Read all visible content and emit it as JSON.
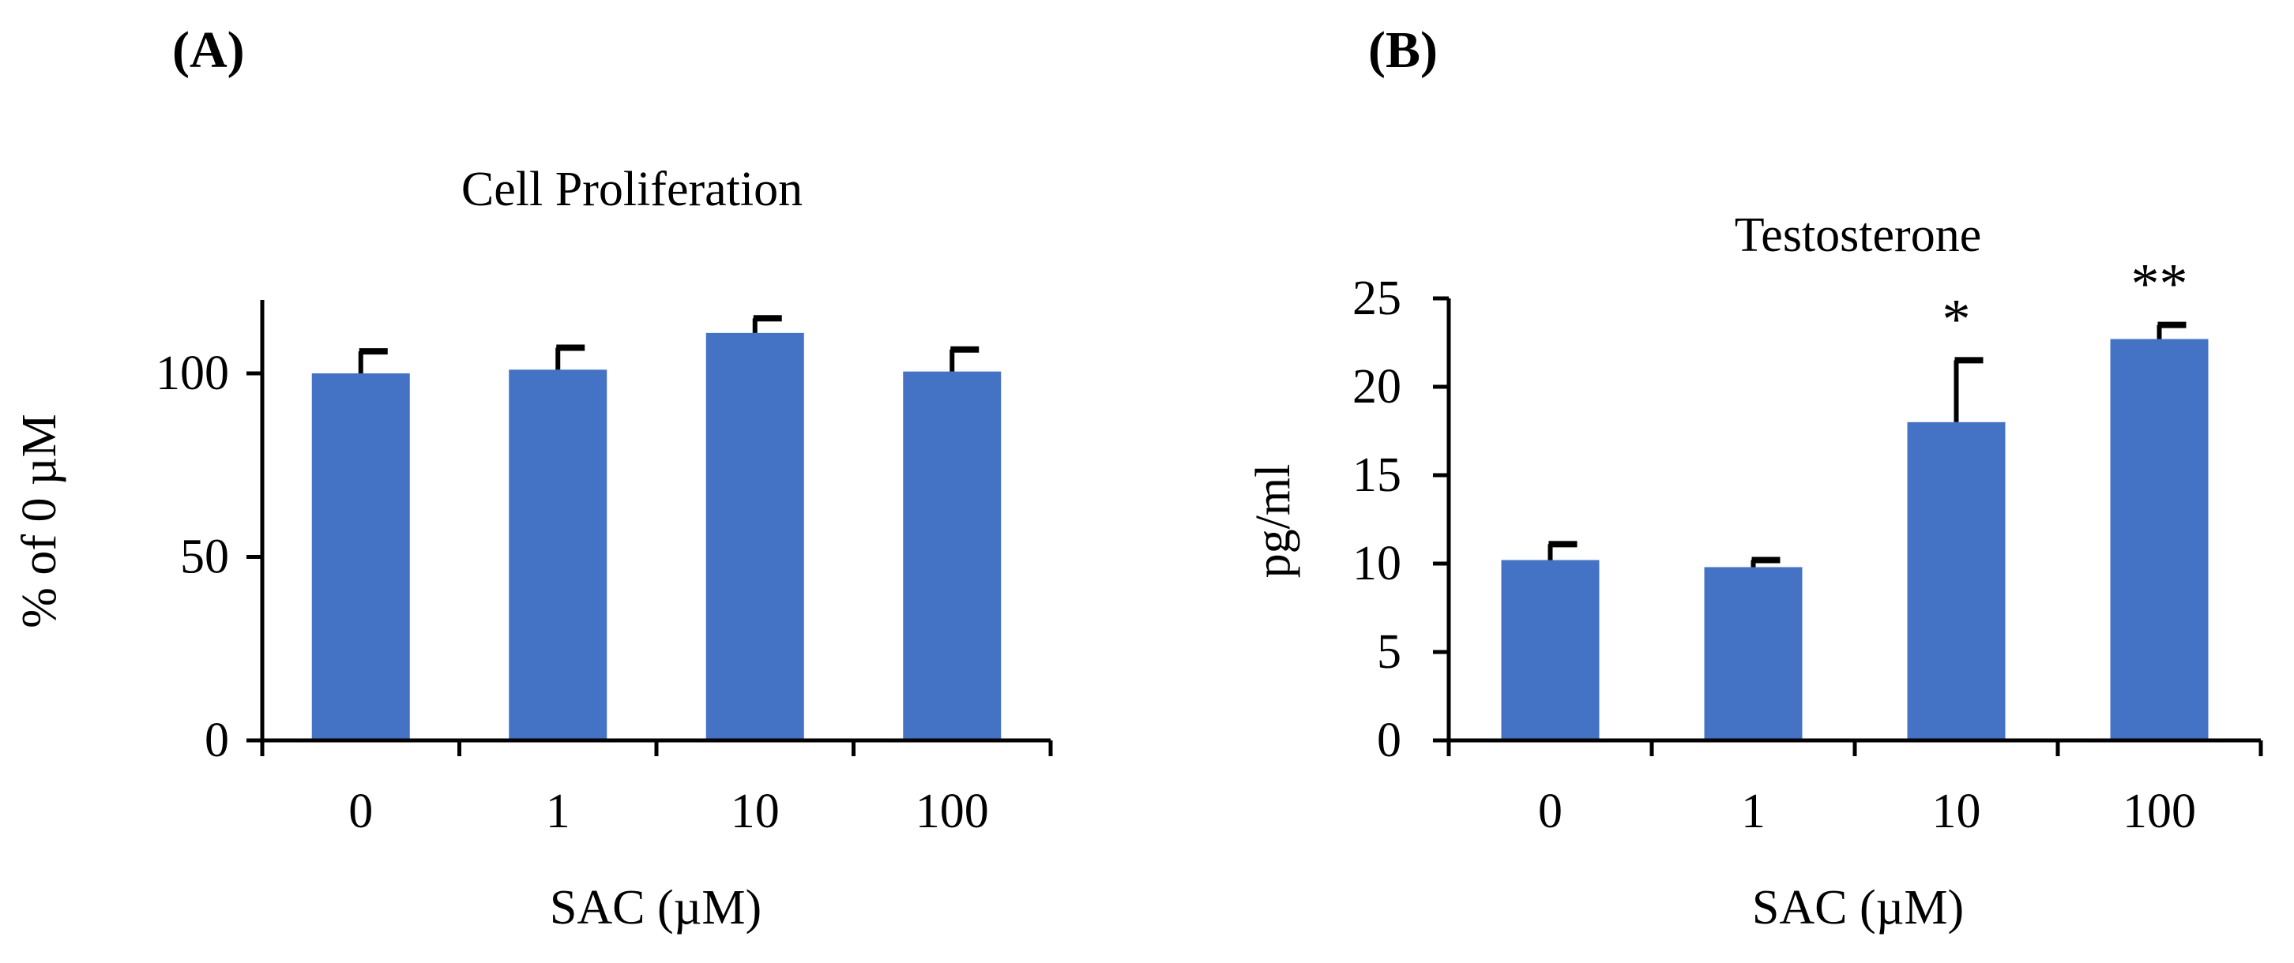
{
  "figure": {
    "panel_labels": [
      "(A)",
      "(B)"
    ]
  },
  "colors": {
    "bar": "#4472C4",
    "axis": "#000000",
    "error": "#000000"
  },
  "chart_data": [
    {
      "type": "bar",
      "title": "Cell Proliferation",
      "xlabel": "SAC (µM)",
      "ylabel": "%  of 0 µM",
      "categories": [
        "0",
        "1",
        "10",
        "100"
      ],
      "values": [
        100,
        101,
        111,
        100.5
      ],
      "errors": [
        6,
        6,
        4,
        6
      ],
      "annotations": [
        "",
        "",
        "",
        ""
      ],
      "ylim": [
        0,
        120
      ],
      "yticks": [
        0,
        50,
        100
      ],
      "grid": false
    },
    {
      "type": "bar",
      "title": "Testosterone",
      "xlabel": "SAC (µM)",
      "ylabel": "pg/ml",
      "categories": [
        "0",
        "1",
        "10",
        "100"
      ],
      "values": [
        10.2,
        9.8,
        18.0,
        22.7
      ],
      "errors": [
        0.9,
        0.4,
        3.5,
        0.8
      ],
      "annotations": [
        "",
        "",
        "*",
        "**"
      ],
      "ylim": [
        0,
        25
      ],
      "yticks": [
        0,
        5,
        10,
        15,
        20,
        25
      ],
      "grid": false
    }
  ]
}
